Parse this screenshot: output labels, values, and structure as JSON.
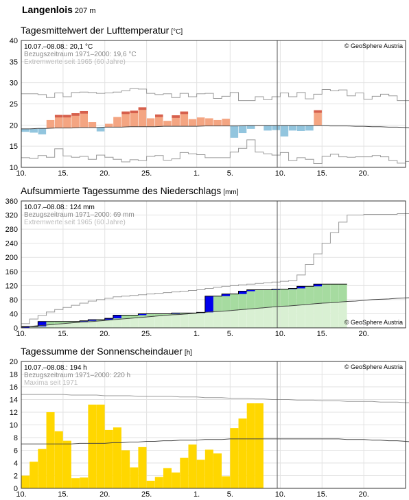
{
  "station": {
    "name": "Langenlois",
    "elevation": "207 m"
  },
  "copyright": "© GeoSphere Austria",
  "x_tick_labels": [
    "10.",
    "15.",
    "20.",
    "25.",
    "1.",
    "5.",
    "10.",
    "15.",
    "20."
  ],
  "colors": {
    "warm": "#f4a582",
    "warm_dark": "#d6604d",
    "cold": "#92c5de",
    "precip_dark": "#0000ee",
    "precip_med": "#a6dba0",
    "precip_light": "#d9f0d3",
    "sun": "#ffd700",
    "ref_line": "#444444",
    "extreme_line": "#999999"
  },
  "chart_data": [
    {
      "type": "bar",
      "title": "Tagesmittelwert der Lufttemperatur",
      "unit": "[°C]",
      "ylim": [
        10,
        40
      ],
      "y_ticks": [
        10,
        15,
        20,
        25,
        30,
        35,
        40
      ],
      "info": [
        "10.07.–08.08.: 20,1 °C",
        "Bezugszeitraum 1971–2000: 19,6 °C",
        "Extremwerte seit 1965 (60 Jahre)"
      ],
      "values": [
        18.4,
        18.2,
        17.8,
        21.2,
        22.4,
        22.4,
        22.8,
        23.3,
        20.7,
        18.5,
        20.3,
        21.9,
        23.2,
        23.4,
        24.2,
        21.6,
        22.5,
        21.0,
        22.3,
        23.2,
        21.4,
        21.8,
        21.6,
        21.2,
        21.5,
        17.0,
        18.1,
        19.1,
        20.0,
        18.7,
        18.8,
        17.3,
        18.7,
        18.6,
        18.7,
        23.5
      ],
      "reference": [
        19.1,
        19.1,
        19.2,
        19.2,
        19.3,
        19.3,
        19.3,
        19.4,
        19.4,
        19.4,
        19.5,
        19.5,
        19.5,
        19.6,
        19.6,
        19.6,
        19.6,
        19.7,
        19.7,
        19.7,
        19.7,
        19.7,
        19.8,
        19.8,
        19.8,
        19.8,
        19.8,
        19.9,
        19.9,
        19.9,
        19.9,
        19.9,
        19.9,
        19.9,
        19.9,
        19.9,
        19.9,
        19.8,
        19.8,
        19.8,
        19.7,
        19.7,
        19.6,
        19.6,
        19.5,
        19.5,
        19.4,
        19.3,
        19.2,
        19.1,
        19.0,
        18.9,
        18.8,
        18.7,
        18.6,
        18.5,
        18.4
      ],
      "max_extreme": [
        27.4,
        27.4,
        27.2,
        26.5,
        27.6,
        26.7,
        27.7,
        27.8,
        27.7,
        27.5,
        27.6,
        27.8,
        28.1,
        28.6,
        28.5,
        27.5,
        27.2,
        27.4,
        26.5,
        27.5,
        26.7,
        27.4,
        27.5,
        26.3,
        26.8,
        27.7,
        25.8,
        25.8,
        26.7,
        26.0,
        26.7,
        27.6,
        26.7,
        27.7,
        26.2,
        27.3,
        28.4,
        28.1,
        28.3,
        26.9,
        27.6,
        26.1,
        26.8,
        27.3,
        26.9,
        25.8,
        25.8,
        27.0,
        26.3,
        26.0,
        26.3,
        26.2,
        26.8,
        27.3,
        27.6,
        28.1,
        28.5
      ],
      "min_extreme": [
        12.3,
        12.1,
        12.8,
        12.4,
        14.4,
        12.7,
        12.4,
        12.6,
        11.9,
        12.9,
        12.4,
        11.9,
        11.3,
        11.8,
        11.6,
        12.6,
        12.8,
        11.7,
        12.0,
        13.5,
        13.2,
        13.0,
        12.3,
        12.3,
        12.3,
        13.6,
        14.5,
        16.5,
        13.6,
        13.2,
        12.9,
        13.5,
        11.6,
        12.3,
        11.9,
        10.9,
        12.6,
        13.1,
        12.5,
        12.4,
        12.5,
        12.5,
        12.8,
        12.5,
        11.6,
        11.0,
        11.4,
        12.6,
        12.5,
        11.4,
        12.1,
        12.4,
        11.6,
        11.9,
        13.0,
        13.4,
        12.5
      ]
    },
    {
      "type": "area",
      "title": "Aufsummierte Tagessumme des Niederschlags",
      "unit": "[mm]",
      "ylim": [
        0,
        360
      ],
      "y_ticks": [
        0,
        40,
        80,
        120,
        160,
        200,
        240,
        280,
        320,
        360
      ],
      "info": [
        "10.07.–08.08.: 124 mm",
        "Bezugszeitraum 1971–2000: 69 mm",
        "Extremwerte seit 1965 (60 Jahre)"
      ],
      "values": [
        4,
        4,
        18,
        18,
        18,
        18,
        18,
        20,
        23,
        23,
        27,
        36,
        36,
        36,
        40,
        40,
        40,
        40,
        42,
        42,
        42,
        44,
        90,
        90,
        96,
        96,
        104,
        108,
        108,
        108,
        110,
        110,
        112,
        118,
        118,
        124,
        124,
        124,
        124
      ],
      "reference": [
        2,
        4,
        6,
        8,
        10,
        12,
        14,
        16,
        17,
        19,
        21,
        23,
        25,
        27,
        29,
        31,
        33,
        35,
        37,
        38,
        40,
        42,
        44,
        46,
        47,
        49,
        51,
        53,
        55,
        57,
        59,
        61,
        62,
        64,
        66,
        68,
        70,
        71,
        73,
        75,
        76,
        78,
        80,
        81,
        82,
        84,
        85,
        86,
        87,
        88,
        89,
        90,
        91,
        92,
        93,
        94,
        95
      ],
      "max_extreme": [
        12,
        25,
        35,
        45,
        52,
        58,
        64,
        70,
        76,
        80,
        84,
        88,
        90,
        92,
        94,
        96,
        98,
        100,
        102,
        104,
        106,
        108,
        112,
        115,
        118,
        120,
        122,
        124,
        126,
        128,
        130,
        132,
        134,
        150,
        180,
        210,
        240,
        270,
        300,
        320,
        320,
        322,
        322,
        322,
        322,
        324,
        324,
        324,
        324,
        324,
        324,
        324,
        324,
        324,
        324,
        324,
        324
      ],
      "min_extreme": [
        0,
        0,
        0,
        0,
        0,
        0,
        0,
        0,
        0,
        0,
        0,
        0,
        0,
        0,
        0,
        0,
        0,
        0,
        0,
        0,
        0,
        0,
        0,
        0,
        0,
        0,
        0,
        0,
        0,
        0,
        0,
        0,
        0,
        0,
        0,
        0,
        0,
        0,
        0,
        0,
        0,
        0,
        0,
        0,
        0,
        0,
        0,
        0,
        0,
        0,
        0,
        0,
        0,
        0,
        0,
        0,
        0
      ]
    },
    {
      "type": "bar",
      "title": "Tagessumme der Sonnenscheindauer",
      "unit": "[h]",
      "ylim": [
        0,
        20
      ],
      "y_ticks": [
        0,
        2,
        4,
        6,
        8,
        10,
        12,
        14,
        16,
        18,
        20
      ],
      "info": [
        "10.07.–08.08.: 194 h",
        "Bezugszeitraum 1971–2000: 220 h",
        "Maxima seit 1971"
      ],
      "values": [
        2.0,
        4.2,
        6.2,
        12.0,
        9.0,
        7.5,
        1.6,
        1.7,
        13.2,
        13.2,
        9.2,
        9.6,
        6.0,
        3.3,
        6.5,
        1.2,
        1.8,
        3.2,
        2.5,
        4.8,
        6.9,
        4.5,
        6.1,
        5.5,
        1.9,
        9.5,
        11.0,
        13.4,
        13.4
      ],
      "reference": [
        7.0,
        7.0,
        7.0,
        7.0,
        7.0,
        7.0,
        7.0,
        7.1,
        7.1,
        7.1,
        7.1,
        7.2,
        7.2,
        7.3,
        7.3,
        7.4,
        7.4,
        7.5,
        7.5,
        7.6,
        7.6,
        7.6,
        7.7,
        7.7,
        7.7,
        7.8,
        7.8,
        7.8,
        7.8,
        7.8,
        7.8,
        7.8,
        7.8,
        7.8,
        7.8,
        7.8,
        7.8,
        7.8,
        7.8,
        7.7,
        7.7,
        7.7,
        7.6,
        7.6,
        7.5,
        7.5,
        7.4,
        7.3,
        7.2,
        7.1,
        7.0,
        6.9,
        6.8,
        6.6,
        6.5,
        6.4,
        6.3
      ],
      "max_extreme": [
        14.8,
        14.8,
        14.8,
        14.8,
        14.8,
        14.8,
        14.7,
        14.7,
        14.7,
        14.7,
        14.6,
        14.6,
        14.6,
        14.6,
        14.5,
        14.5,
        14.5,
        14.5,
        14.5,
        14.4,
        14.4,
        14.4,
        14.3,
        14.3,
        14.3,
        14.2,
        14.2,
        14.2,
        14.1,
        14.1,
        14.0,
        14.0,
        14.0,
        13.9,
        13.9,
        13.9,
        13.8,
        13.8,
        13.8,
        13.7,
        13.7,
        13.7,
        13.7,
        13.6,
        13.6,
        13.6,
        13.5,
        13.5,
        13.5,
        13.5,
        13.4,
        13.4,
        13.4,
        13.3,
        13.3,
        13.3,
        13.3
      ]
    }
  ]
}
